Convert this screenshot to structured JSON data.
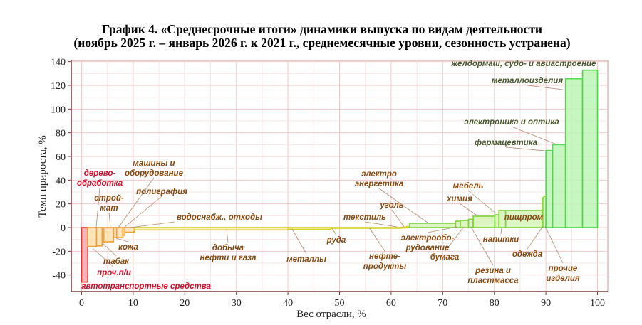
{
  "chart_data": {
    "type": "bar",
    "variable_width": true,
    "title": "График 4. «Среднесрочные итоги» динамики выпуска по видам деятельности",
    "subtitle": "(ноябрь 2025 г. – январь 2026 г. к 2021 г., среднемесячные уровни, сезонность устранена)",
    "xlabel": "Вес отрасли, %",
    "ylabel": "Темп прироста, %",
    "xlim": [
      -2,
      102
    ],
    "ylim": [
      -54,
      141
    ],
    "xticks": [
      0,
      10,
      20,
      30,
      40,
      50,
      60,
      70,
      80,
      90,
      100
    ],
    "yticks": [
      -40,
      -20,
      0,
      20,
      40,
      60,
      80,
      100,
      120,
      140
    ],
    "grid": true,
    "colors": {
      "red": "#e8333a",
      "orange": "#f0a030",
      "yellow": "#d6cf2a",
      "lightgreen": "#7cd23a",
      "green": "#4fd94a",
      "label_red": "#d0102a",
      "label_brown": "#8a4a10",
      "label_green": "#4a5a30"
    },
    "bars": [
      {
        "label_lines": [
          "автотранспортные средства"
        ],
        "x0": 0,
        "x1": 1.2,
        "value": -46
      },
      {
        "label_lines": [
          "проч.п/и"
        ],
        "x0": 1.2,
        "x1": 2.9,
        "value": -16
      },
      {
        "label_lines": [
          "дерево-",
          "обработка"
        ],
        "x0": 2.9,
        "x1": 4.0,
        "value": -15.5
      },
      {
        "label_lines": [
          "табак"
        ],
        "x0": 4.0,
        "x1": 4.3,
        "value": -12
      },
      {
        "label_lines": [
          "строй-",
          "мат"
        ],
        "x0": 4.3,
        "x1": 6.2,
        "value": -12
      },
      {
        "label_lines": [
          "кожа"
        ],
        "x0": 6.2,
        "x1": 6.8,
        "value": -8.5
      },
      {
        "label_lines": [
          "машины и",
          "оборудование"
        ],
        "x0": 6.8,
        "x1": 8.0,
        "value": -8.5
      },
      {
        "label_lines": [
          "полиграфия"
        ],
        "x0": 8.0,
        "x1": 8.4,
        "value": -6.5
      },
      {
        "label_lines": [
          "водоснабж., отходы"
        ],
        "x0": 8.4,
        "x1": 10.2,
        "value": -4
      },
      {
        "label_lines": [
          "добыча",
          "нефти и газа"
        ],
        "x0": 10.2,
        "x1": 40,
        "value": -2
      },
      {
        "label_lines": [
          "металлы"
        ],
        "x0": 40,
        "x1": 48.3,
        "value": -1.5
      },
      {
        "label_lines": [
          "руда"
        ],
        "x0": 48.3,
        "x1": 49,
        "value": -0.3
      },
      {
        "label_lines": [
          "нефте-",
          "продукты"
        ],
        "x0": 49,
        "x1": 62,
        "value": -0.2
      },
      {
        "label_lines": [
          "текстиль"
        ],
        "x0": 62,
        "x1": 63,
        "value": 0.3
      },
      {
        "label_lines": [
          "уголь"
        ],
        "x0": 63,
        "x1": 63.6,
        "value": 0.8
      },
      {
        "label_lines": [
          "электро",
          "энергетика"
        ],
        "x0": 63.6,
        "x1": 72.5,
        "value": 3.6
      },
      {
        "label_lines": [
          "электрообо-",
          "рудование"
        ],
        "x0": 72.5,
        "x1": 73.4,
        "value": 5.4
      },
      {
        "label_lines": [
          "бумага"
        ],
        "x0": 73.4,
        "x1": 75.0,
        "value": 6
      },
      {
        "label_lines": [
          "резина и",
          "пластмасса"
        ],
        "x0": 75.0,
        "x1": 75.9,
        "value": 7
      },
      {
        "label_lines": [
          "химия"
        ],
        "x0": 75.9,
        "x1": 80.1,
        "value": 9.6
      },
      {
        "label_lines": [
          "мебель"
        ],
        "x0": 80.1,
        "x1": 80.9,
        "value": 10.8
      },
      {
        "label_lines": [
          "напитки"
        ],
        "x0": 80.9,
        "x1": 82.2,
        "value": 14.4
      },
      {
        "label_lines": [
          "пищпром"
        ],
        "x0": 82.2,
        "x1": 89.3,
        "value": 14.4
      },
      {
        "label_lines": [
          "одежда"
        ],
        "x0": 89.3,
        "x1": 89.6,
        "value": 25
      },
      {
        "label_lines": [
          "прочие",
          "изделия"
        ],
        "x0": 89.6,
        "x1": 90.0,
        "value": 26.5
      },
      {
        "label_lines": [
          "фармацевтика"
        ],
        "x0": 90.0,
        "x1": 91.3,
        "value": 65
      },
      {
        "label_lines": [
          "электроника и оптика"
        ],
        "x0": 91.3,
        "x1": 93.8,
        "value": 70
      },
      {
        "label_lines": [
          "металлоизделия"
        ],
        "x0": 93.8,
        "x1": 97.1,
        "value": 125.6
      },
      {
        "label_lines": [
          "желдормаш, судо- и авиастроение"
        ],
        "x0": 97.1,
        "x1": 100,
        "value": 132.8
      }
    ]
  }
}
